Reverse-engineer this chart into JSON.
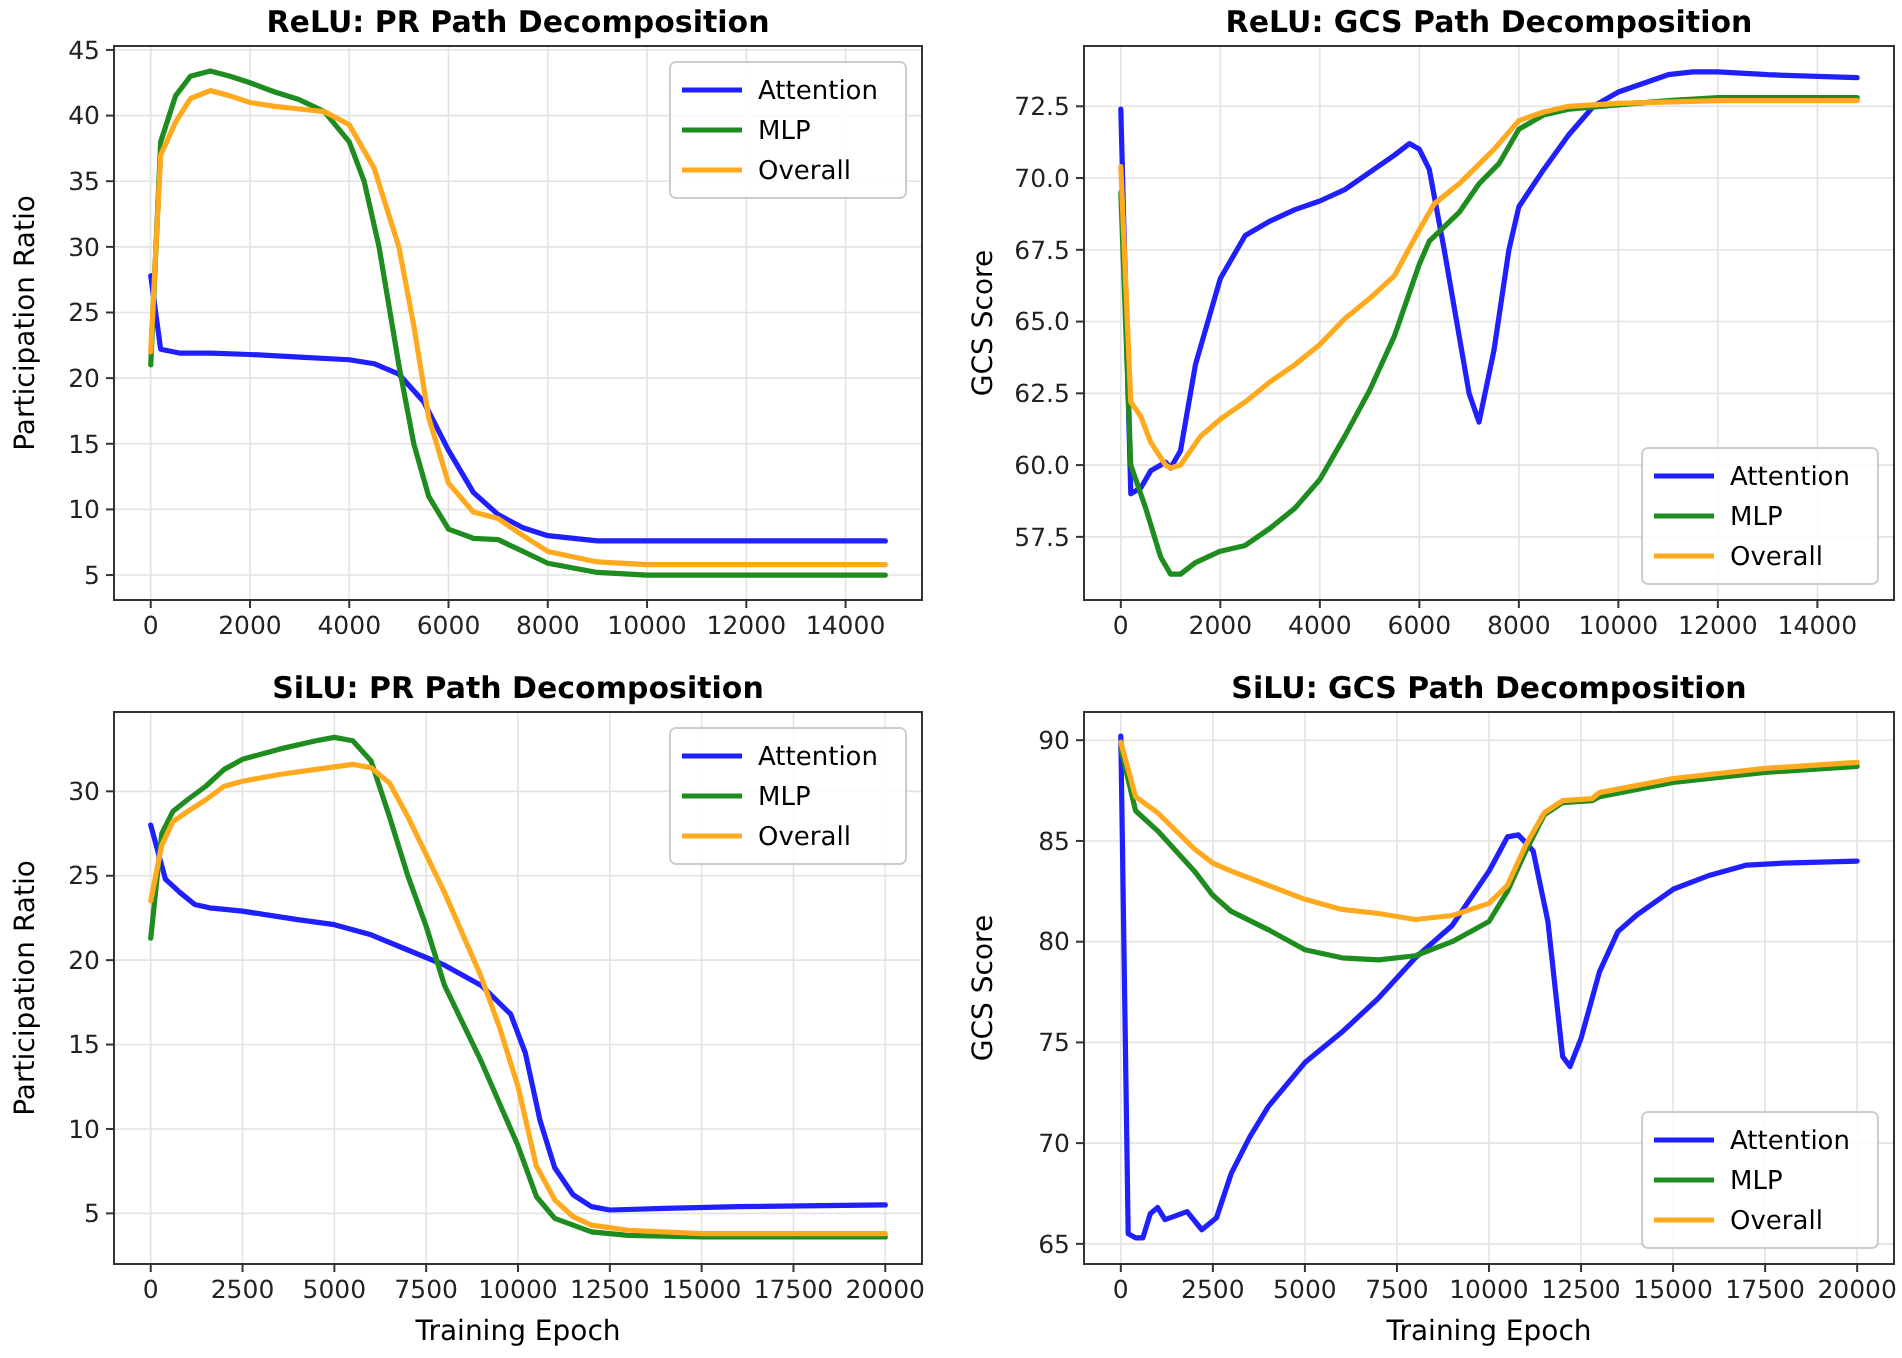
{
  "chart_data": [
    {
      "type": "line",
      "title": "ReLU: PR Path Decomposition",
      "ylabel": "Participation Ratio",
      "xlim": [
        -740,
        15540
      ],
      "xticks": [
        0,
        2000,
        4000,
        6000,
        8000,
        10000,
        12000,
        14000
      ],
      "ylim": [
        3.1,
        45.3
      ],
      "yticks": [
        5,
        10,
        15,
        20,
        25,
        30,
        35,
        40,
        45
      ],
      "grid": true,
      "legend": "top right",
      "line_style": "solid",
      "marker": "none",
      "series": [
        {
          "name": "Attention",
          "color": "#1f1fff",
          "x": [
            0,
            200,
            600,
            1200,
            2000,
            3000,
            4000,
            4500,
            5000,
            5500,
            6000,
            6500,
            7000,
            7500,
            8000,
            9000,
            10000,
            12000,
            14800
          ],
          "values": [
            27.8,
            22.2,
            21.9,
            21.9,
            21.8,
            21.6,
            21.4,
            21.1,
            20.3,
            18.2,
            14.5,
            11.3,
            9.6,
            8.6,
            8.0,
            7.6,
            7.6,
            7.6,
            7.6
          ]
        },
        {
          "name": "MLP",
          "color": "#1f8c1f",
          "x": [
            0,
            200,
            500,
            800,
            1200,
            1600,
            2000,
            2500,
            3000,
            3500,
            4000,
            4300,
            4600,
            5000,
            5300,
            5600,
            6000,
            6500,
            7000,
            7500,
            8000,
            9000,
            10000,
            14800
          ],
          "values": [
            21,
            38,
            41.5,
            43,
            43.4,
            43,
            42.5,
            41.8,
            41.2,
            40.3,
            38,
            35,
            30,
            21,
            15,
            11,
            8.5,
            7.8,
            7.7,
            6.8,
            5.9,
            5.2,
            5,
            5
          ]
        },
        {
          "name": "Overall",
          "color": "#ffa91f",
          "x": [
            0,
            200,
            500,
            800,
            1200,
            1600,
            2000,
            2500,
            3000,
            3500,
            4000,
            4500,
            5000,
            5300,
            5600,
            6000,
            6500,
            7000,
            7500,
            8000,
            9000,
            10000,
            14800
          ],
          "values": [
            22,
            37,
            39.5,
            41.3,
            41.9,
            41.5,
            41,
            40.7,
            40.5,
            40.3,
            39.3,
            36,
            30,
            24,
            17,
            12,
            9.8,
            9.3,
            8,
            6.8,
            6,
            5.8,
            5.8
          ]
        }
      ]
    },
    {
      "type": "line",
      "title": "ReLU: GCS Path Decomposition",
      "ylabel": "GCS Score",
      "xlim": [
        -740,
        15540
      ],
      "xticks": [
        0,
        2000,
        4000,
        6000,
        8000,
        10000,
        12000,
        14000
      ],
      "ylim": [
        55.3,
        74.6
      ],
      "yticks": [
        {
          "value": 57.5,
          "label": "57.5"
        },
        {
          "value": 60,
          "label": "60.0"
        },
        {
          "value": 62.5,
          "label": "62.5"
        },
        {
          "value": 65,
          "label": "65.0"
        },
        {
          "value": 67.5,
          "label": "67.5"
        },
        {
          "value": 70,
          "label": "70.0"
        },
        {
          "value": 72.5,
          "label": "72.5"
        }
      ],
      "grid": true,
      "legend": "bottom right",
      "line_style": "solid",
      "marker": "none",
      "series": [
        {
          "name": "Attention",
          "color": "#1f1fff",
          "x": [
            0,
            200,
            400,
            600,
            900,
            1000,
            1200,
            1500,
            2000,
            2500,
            3000,
            3500,
            4000,
            4500,
            5000,
            5500,
            5800,
            6000,
            6200,
            6500,
            6800,
            7000,
            7200,
            7500,
            7800,
            8000,
            8500,
            9000,
            9500,
            10000,
            11000,
            11500,
            12000,
            13000,
            14800
          ],
          "values": [
            72.4,
            59,
            59.2,
            59.8,
            60.1,
            59.9,
            60.5,
            63.5,
            66.5,
            68,
            68.5,
            68.9,
            69.2,
            69.6,
            70.2,
            70.8,
            71.2,
            71,
            70.3,
            67.5,
            64.5,
            62.5,
            61.5,
            64,
            67.5,
            69,
            70.3,
            71.5,
            72.5,
            73,
            73.6,
            73.7,
            73.7,
            73.6,
            73.5
          ]
        },
        {
          "name": "MLP",
          "color": "#1f8c1f",
          "x": [
            0,
            200,
            500,
            800,
            1000,
            1200,
            1500,
            2000,
            2500,
            3000,
            3500,
            4000,
            4500,
            5000,
            5500,
            6000,
            6200,
            6800,
            7200,
            7600,
            8000,
            8500,
            9000,
            11000,
            12000,
            14800
          ],
          "values": [
            69.5,
            60,
            58.5,
            56.8,
            56.2,
            56.2,
            56.6,
            57,
            57.2,
            57.8,
            58.5,
            59.5,
            61,
            62.6,
            64.5,
            67,
            67.8,
            68.8,
            69.8,
            70.5,
            71.7,
            72.2,
            72.4,
            72.7,
            72.8,
            72.8
          ]
        },
        {
          "name": "Overall",
          "color": "#ffa91f",
          "x": [
            0,
            200,
            400,
            600,
            900,
            1000,
            1200,
            1600,
            2000,
            2500,
            3000,
            3500,
            4000,
            4500,
            5000,
            5500,
            6000,
            6300,
            6800,
            7500,
            8000,
            8500,
            9000,
            10000,
            12000,
            14800
          ],
          "values": [
            70.4,
            62.2,
            61.7,
            60.8,
            60,
            59.9,
            60,
            61,
            61.6,
            62.2,
            62.9,
            63.5,
            64.2,
            65.1,
            65.8,
            66.6,
            68.2,
            69.1,
            69.8,
            71,
            72,
            72.3,
            72.5,
            72.6,
            72.7,
            72.7
          ]
        }
      ]
    },
    {
      "type": "line",
      "title": "SiLU: PR Path Decomposition",
      "xlabel": "Training Epoch",
      "ylabel": "Participation Ratio",
      "xlim": [
        -1000,
        21000
      ],
      "xticks": [
        0,
        2500,
        5000,
        7500,
        10000,
        12500,
        15000,
        17500,
        20000
      ],
      "ylim": [
        2.0,
        34.7
      ],
      "yticks": [
        5,
        10,
        15,
        20,
        25,
        30
      ],
      "grid": true,
      "legend": "top right",
      "line_style": "solid",
      "marker": "none",
      "series": [
        {
          "name": "Attention",
          "color": "#1f1fff",
          "x": [
            0,
            400,
            800,
            1200,
            1600,
            2500,
            4000,
            5000,
            6000,
            7000,
            8000,
            9000,
            9800,
            10200,
            10600,
            11000,
            11500,
            12000,
            12500,
            14000,
            16000,
            20000
          ],
          "values": [
            28,
            24.8,
            24,
            23.3,
            23.1,
            22.9,
            22.4,
            22.1,
            21.5,
            20.6,
            19.7,
            18.5,
            16.8,
            14.5,
            10.5,
            7.7,
            6.1,
            5.4,
            5.2,
            5.3,
            5.4,
            5.5
          ]
        },
        {
          "name": "MLP",
          "color": "#1f8c1f",
          "x": [
            0,
            300,
            600,
            1000,
            1500,
            2000,
            2500,
            3500,
            4500,
            5000,
            5500,
            6000,
            6500,
            7000,
            7500,
            8000,
            9000,
            10000,
            10500,
            11000,
            12000,
            13000,
            15000,
            20000
          ],
          "values": [
            21.3,
            27.5,
            28.8,
            29.5,
            30.3,
            31.3,
            31.9,
            32.5,
            33,
            33.2,
            33,
            31.8,
            28.5,
            25,
            22,
            18.5,
            14,
            9,
            6,
            4.7,
            3.9,
            3.7,
            3.6,
            3.6
          ]
        },
        {
          "name": "Overall",
          "color": "#ffa91f",
          "x": [
            0,
            300,
            600,
            1000,
            1500,
            2000,
            2500,
            3500,
            4500,
            5500,
            6000,
            6500,
            7000,
            8000,
            9000,
            9500,
            10000,
            10500,
            11000,
            11500,
            12000,
            13000,
            15000,
            20000
          ],
          "values": [
            23.5,
            26.8,
            28.2,
            28.8,
            29.5,
            30.3,
            30.6,
            31,
            31.3,
            31.6,
            31.4,
            30.5,
            28.5,
            24,
            19,
            16,
            12.5,
            7.8,
            5.8,
            4.8,
            4.3,
            4,
            3.8,
            3.8
          ]
        }
      ]
    },
    {
      "type": "line",
      "title": "SiLU: GCS Path Decomposition",
      "xlabel": "Training Epoch",
      "ylabel": "GCS Score",
      "xlim": [
        -1000,
        21000
      ],
      "xticks": [
        0,
        2500,
        5000,
        7500,
        10000,
        12500,
        15000,
        17500,
        20000
      ],
      "ylim": [
        64,
        91.4
      ],
      "yticks": [
        65,
        70,
        75,
        80,
        85,
        90
      ],
      "grid": true,
      "legend": "bottom right",
      "line_style": "solid",
      "marker": "none",
      "series": [
        {
          "name": "Attention",
          "color": "#1f1fff",
          "x": [
            0,
            200,
            400,
            600,
            800,
            1000,
            1200,
            1800,
            2200,
            2600,
            3000,
            3500,
            4000,
            5000,
            6000,
            7000,
            8000,
            9000,
            10000,
            10500,
            10800,
            11200,
            11600,
            12000,
            12200,
            12500,
            13000,
            13500,
            14000,
            15000,
            16000,
            17000,
            18000,
            20000
          ],
          "values": [
            90.2,
            65.5,
            65.3,
            65.3,
            66.5,
            66.8,
            66.2,
            66.6,
            65.7,
            66.3,
            68.5,
            70.3,
            71.8,
            74,
            75.5,
            77.2,
            79.2,
            80.8,
            83.5,
            85.2,
            85.3,
            84.5,
            81,
            74.3,
            73.8,
            75.2,
            78.5,
            80.5,
            81.3,
            82.6,
            83.3,
            83.8,
            83.9,
            84
          ]
        },
        {
          "name": "MLP",
          "color": "#1f8c1f",
          "x": [
            0,
            400,
            1000,
            2000,
            2500,
            3000,
            4000,
            5000,
            6000,
            7000,
            8000,
            9000,
            10000,
            10500,
            11000,
            11500,
            12000,
            12800,
            13000,
            15000,
            17500,
            20000
          ],
          "values": [
            89.6,
            86.5,
            85.5,
            83.5,
            82.3,
            81.5,
            80.6,
            79.6,
            79.2,
            79.1,
            79.3,
            80,
            81,
            82.5,
            84.5,
            86.3,
            86.9,
            87,
            87.2,
            87.9,
            88.4,
            88.7
          ]
        },
        {
          "name": "Overall",
          "color": "#ffa91f",
          "x": [
            0,
            400,
            1000,
            2000,
            2500,
            3000,
            4000,
            5000,
            6000,
            7000,
            8000,
            9000,
            10000,
            10500,
            11000,
            11500,
            12000,
            12800,
            13000,
            15000,
            17500,
            20000
          ],
          "values": [
            89.9,
            87.2,
            86.4,
            84.6,
            83.9,
            83.5,
            82.8,
            82.1,
            81.6,
            81.4,
            81.1,
            81.3,
            81.9,
            82.8,
            84.8,
            86.4,
            87,
            87.1,
            87.4,
            88.1,
            88.6,
            88.9
          ]
        }
      ]
    }
  ]
}
